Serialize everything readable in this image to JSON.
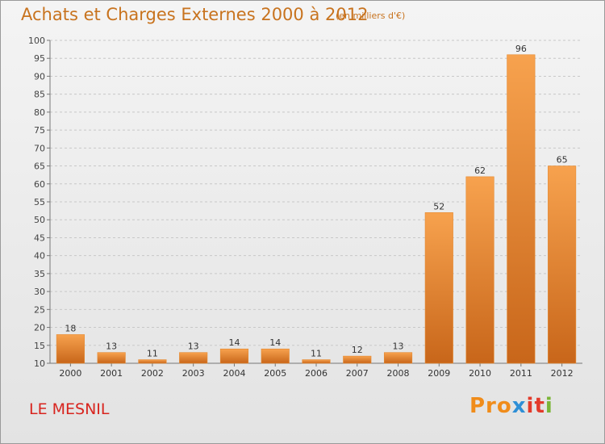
{
  "header": {
    "title": "Achats et Charges Externes 2000 à 2012",
    "unit": "(en milliers d'€)"
  },
  "footer": {
    "place": "LE MESNIL",
    "brand": [
      "Pro",
      "x",
      "it",
      "i"
    ]
  },
  "colors": {
    "bar_light": "#f7a24e",
    "bar_dark": "#c8661a",
    "title": "#c8731e",
    "place": "#d8241e",
    "grid": "#c8c8c8"
  },
  "chart_data": {
    "type": "bar",
    "categories": [
      "2000",
      "2001",
      "2002",
      "2003",
      "2004",
      "2005",
      "2006",
      "2007",
      "2008",
      "2009",
      "2010",
      "2011",
      "2012"
    ],
    "values": [
      18,
      13,
      11,
      13,
      14,
      14,
      11,
      12,
      13,
      52,
      62,
      96,
      65
    ],
    "ylim": [
      10,
      100
    ],
    "ytick_step": 5,
    "grid": true,
    "data_labels": true
  }
}
